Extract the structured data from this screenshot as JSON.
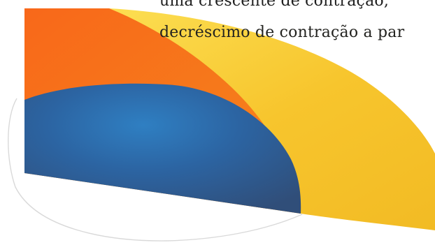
{
  "text": {
    "line1": "uma crescente de contração,",
    "line2": "decréscimo de contração a par"
  },
  "colors": {
    "outer_yellow": "#f6c32a",
    "outer_yellow_light": "#fde45a",
    "middle_orange": "#f7731a",
    "middle_orange_light": "#ff8a1d",
    "inner_blue_dark": "#304e79",
    "inner_blue_light": "#2f7fc2",
    "outline_gray": "#d9d9d9",
    "text": "#1e1e1e"
  }
}
